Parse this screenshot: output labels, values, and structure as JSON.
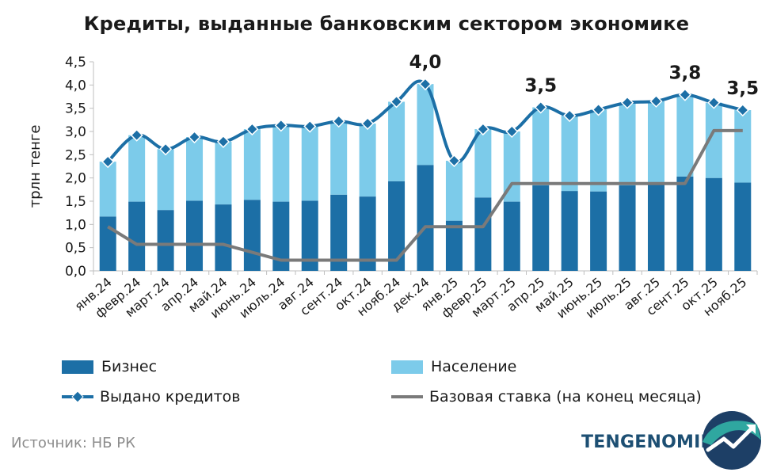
{
  "chart_data": {
    "type": "bar",
    "title": "Кредиты, выданные банковским сектором экономике",
    "ylabel": "трлн тенге",
    "xlabel": "",
    "ylim": [
      0,
      4.5
    ],
    "yticks": [
      0,
      0.5,
      1,
      1.5,
      2,
      2.5,
      3,
      3.5,
      4,
      4.5
    ],
    "ytick_labels": [
      "0,0",
      "0,5",
      "1,0",
      "1,5",
      "2,0",
      "2,5",
      "3,0",
      "3,5",
      "4,0",
      "4,5"
    ],
    "categories": [
      "янв.24",
      "февр.24",
      "март.24",
      "апр.24",
      "май.24",
      "июнь.24",
      "июль.24",
      "авг.24",
      "сент.24",
      "окт.24",
      "нояб.24",
      "дек.24",
      "янв.25",
      "февр.25",
      "март.25",
      "апр.25",
      "май.25",
      "июнь.25",
      "июль.25",
      "авг.25",
      "сент.25",
      "окт.25",
      "нояб.25"
    ],
    "series": [
      {
        "name": "Бизнес",
        "kind": "bar-stacked",
        "color": "#1c6fa6",
        "values": [
          1.17,
          1.49,
          1.31,
          1.51,
          1.43,
          1.53,
          1.49,
          1.51,
          1.64,
          1.6,
          1.93,
          2.28,
          1.08,
          1.58,
          1.49,
          1.84,
          1.72,
          1.71,
          1.84,
          1.86,
          2.03,
          2.0,
          1.9
        ]
      },
      {
        "name": "Население",
        "kind": "bar-stacked",
        "color": "#7ccbea",
        "values": [
          1.18,
          1.43,
          1.31,
          1.37,
          1.35,
          1.52,
          1.64,
          1.6,
          1.58,
          1.57,
          1.71,
          1.74,
          1.29,
          1.47,
          1.51,
          1.68,
          1.62,
          1.76,
          1.78,
          1.79,
          1.76,
          1.62,
          1.56
        ]
      },
      {
        "name": "Выдано кредитов",
        "kind": "line-markers",
        "color": "#1c6fa6",
        "values": [
          2.35,
          2.92,
          2.62,
          2.88,
          2.78,
          3.05,
          3.13,
          3.11,
          3.22,
          3.17,
          3.64,
          4.02,
          2.37,
          3.05,
          3.0,
          3.52,
          3.34,
          3.47,
          3.62,
          3.65,
          3.79,
          3.62,
          3.46
        ]
      },
      {
        "name": "Базовая ставка (на конец месяца)",
        "kind": "line",
        "color": "#7a7a7a",
        "values": [
          0.95,
          0.57,
          0.57,
          0.57,
          0.57,
          0.4,
          0.23,
          0.23,
          0.23,
          0.23,
          0.23,
          0.95,
          0.95,
          0.95,
          1.88,
          1.88,
          1.88,
          1.88,
          1.88,
          1.88,
          1.88,
          3.02,
          3.02
        ]
      }
    ],
    "annotations": [
      {
        "index": 11,
        "label": "4,0"
      },
      {
        "index": 15,
        "label": "3,5"
      },
      {
        "index": 20,
        "label": "3,8"
      },
      {
        "index": 22,
        "label": "3,5"
      }
    ],
    "legend_position": "bottom",
    "grid": false
  },
  "legend": {
    "business": "Бизнес",
    "population": "Население",
    "issued": "Выдано кредитов",
    "base_rate": "Базовая ставка (на конец месяца)"
  },
  "source": "Источник: НБ РК",
  "brand": "TENGENOMIKA",
  "colors": {
    "business": "#1c6fa6",
    "population": "#7ccbea",
    "issued_line": "#1c6fa6",
    "base_rate": "#7a7a7a",
    "brand": "#1d4f73"
  }
}
